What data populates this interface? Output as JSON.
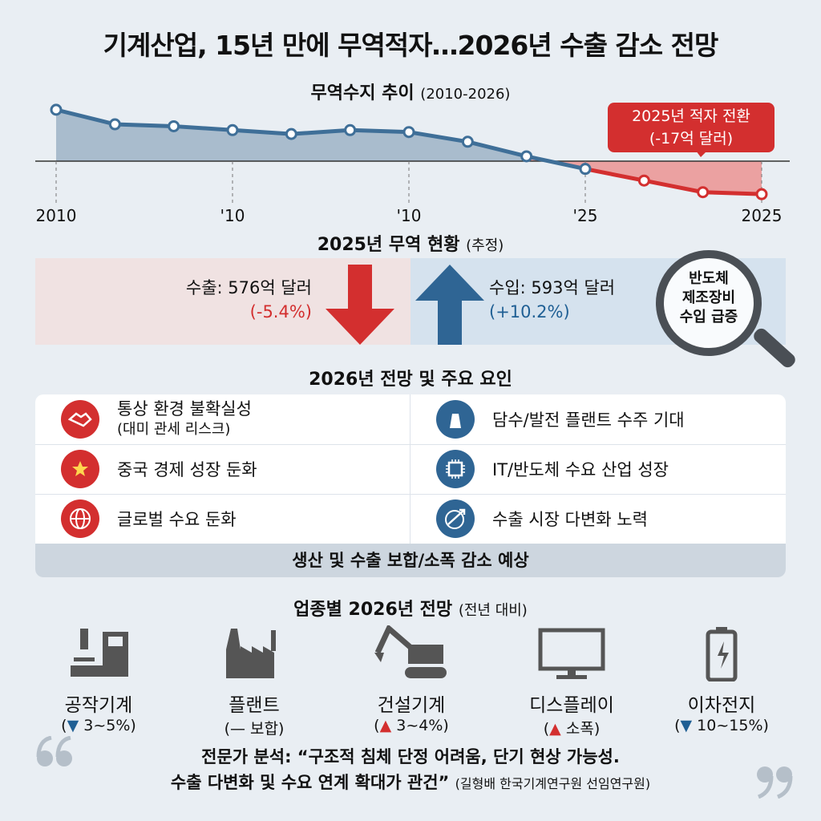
{
  "title": "기계산업, 15년 만에 무역적자…2026년 수출 감소 전망",
  "chart_data": {
    "type": "line",
    "title": "무역수지 추이",
    "subtitle": "(2010-2026)",
    "x_tick_labels": [
      "2010",
      "'10",
      "'10",
      "'25",
      "2025"
    ],
    "values": [
      26.5,
      19,
      18,
      16,
      14,
      16,
      15,
      10,
      2.5,
      -4,
      -10,
      -16,
      -17
    ],
    "y_unit": "억 달러",
    "zero_line": true,
    "colors": {
      "positive": "#3f6f98",
      "negative": "#d32f2f"
    },
    "annotation": {
      "line1": "2025년 적자 전환",
      "line2": "(-17억 달러)"
    }
  },
  "trade": {
    "title": "2025년 무역 현황",
    "title_note": "(추정)",
    "export_label": "수출: 576억 달러",
    "export_change": "(-5.4%)",
    "import_label": "수입: 593억 달러",
    "import_change": "(+10.2%)",
    "magnifier": [
      "반도체",
      "제조장비",
      "수입 급증"
    ]
  },
  "outlook": {
    "title": "2026년 전망 및 주요 요인",
    "negatives": [
      {
        "label": "통상 환경 불확실성",
        "sub": "(대미 관세 리스크)",
        "icon": "handshake-icon"
      },
      {
        "label": "중국 경제 성장 둔화",
        "icon": "china-flag-icon"
      },
      {
        "label": "글로벌 수요 둔화",
        "icon": "globe-icon"
      }
    ],
    "positives": [
      {
        "label": "담수/발전 플랜트 수주 기대",
        "icon": "power-plant-icon"
      },
      {
        "label": "IT/반도체 수요 산업 성장",
        "icon": "chip-icon"
      },
      {
        "label": "수출 시장 다변화 노력",
        "icon": "globe-arrow-icon"
      }
    ],
    "summary": "생산 및 수출 보합/소폭 감소 예상"
  },
  "sectors": {
    "title": "업종별 2026년 전망",
    "title_note": "(전년 대비)",
    "items": [
      {
        "name": "공작기계",
        "dir": "▼",
        "value": "3~5%",
        "icon": "cnc-machine-icon"
      },
      {
        "name": "플랜트",
        "dir": "—",
        "value": "보합",
        "icon": "factory-icon"
      },
      {
        "name": "건설기계",
        "dir": "▲",
        "value": "3~4%",
        "icon": "excavator-icon"
      },
      {
        "name": "디스플레이",
        "dir": "▲",
        "value": "소폭",
        "icon": "monitor-icon"
      },
      {
        "name": "이차전지",
        "dir": "▼",
        "value": "10~15%",
        "icon": "battery-icon"
      }
    ]
  },
  "quote": {
    "line1": "전문가 분석: “구조적 침체 단정 어려움, 단기 현상 가능성.",
    "line2": "수출 다변화 및 수요 연계 확대가 관건”",
    "source": "(길형배 한국기계연구원 선임연구원)"
  }
}
